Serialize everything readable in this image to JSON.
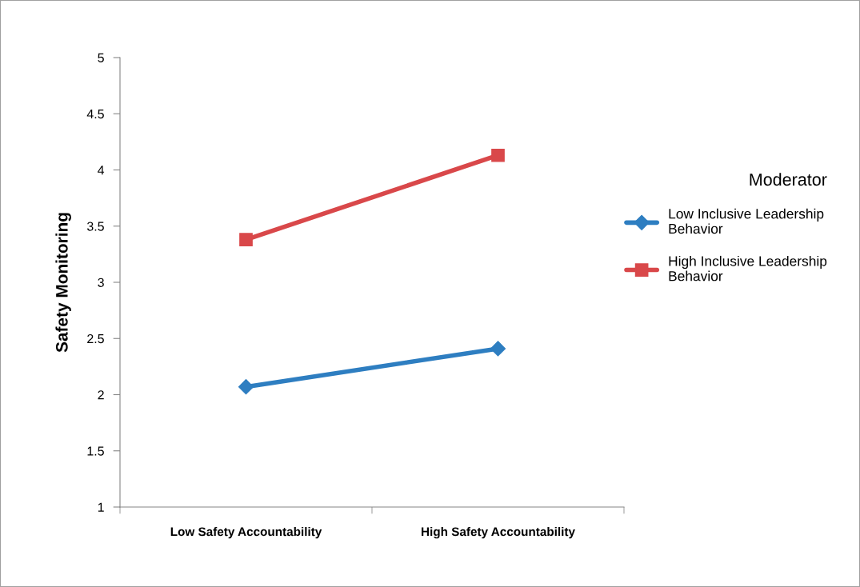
{
  "chart_data": {
    "type": "line",
    "ylabel": "Safety Monitoring",
    "legend_title": "Moderator",
    "categories": [
      "Low Safety Accountability",
      "High Safety Accountability"
    ],
    "series": [
      {
        "name": "Low Inclusive Leadership Behavior",
        "color": "#2e7ec1",
        "values": [
          2.07,
          2.41
        ],
        "marker": "diamond"
      },
      {
        "name": "High Inclusive Leadership Behavior",
        "color": "#d9484a",
        "values": [
          3.38,
          4.13
        ],
        "marker": "square"
      }
    ],
    "ylim": [
      1,
      5
    ],
    "yticks": [
      1,
      1.5,
      2,
      2.5,
      3,
      3.5,
      4,
      4.5,
      5
    ],
    "grid": false,
    "legend": "right",
    "line_style": "solid"
  }
}
